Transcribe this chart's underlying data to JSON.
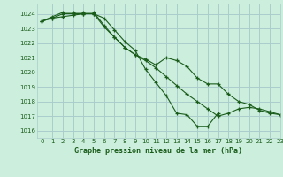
{
  "background_color": "#cceedd",
  "grid_color": "#aacccc",
  "line_color": "#1a5c1a",
  "marker_color": "#1a5c1a",
  "xlabel": "Graphe pression niveau de la mer (hPa)",
  "xlim": [
    -0.5,
    23
  ],
  "ylim": [
    1015.5,
    1024.7
  ],
  "yticks": [
    1016,
    1017,
    1018,
    1019,
    1020,
    1021,
    1022,
    1023,
    1024
  ],
  "xticks": [
    0,
    1,
    2,
    3,
    4,
    5,
    6,
    7,
    8,
    9,
    10,
    11,
    12,
    13,
    14,
    15,
    16,
    17,
    18,
    19,
    20,
    21,
    22,
    23
  ],
  "series": [
    [
      1023.5,
      1023.7,
      1024.0,
      1024.0,
      1024.0,
      1024.0,
      1023.7,
      1022.9,
      1022.1,
      1021.5,
      1020.2,
      1019.3,
      1018.4,
      1017.2,
      1017.1,
      1016.3,
      1016.3,
      1017.2,
      null,
      null,
      null,
      null,
      null,
      null
    ],
    [
      1023.5,
      1023.8,
      1024.1,
      1024.1,
      1024.1,
      1024.1,
      1023.2,
      1022.4,
      1021.7,
      1021.2,
      1020.9,
      1020.5,
      1021.0,
      1020.8,
      1020.4,
      1019.6,
      1019.2,
      1019.2,
      1018.5,
      1018.0,
      1017.8,
      1017.4,
      1017.2,
      1017.1
    ],
    [
      1023.5,
      1023.7,
      1023.8,
      1023.9,
      1024.0,
      1024.0,
      1023.1,
      1022.4,
      1021.7,
      1021.2,
      1020.8,
      1020.3,
      1019.7,
      1019.1,
      1018.5,
      1018.0,
      1017.5,
      1017.0,
      1017.2,
      1017.5,
      1017.6,
      1017.5,
      1017.3,
      1017.1
    ]
  ]
}
